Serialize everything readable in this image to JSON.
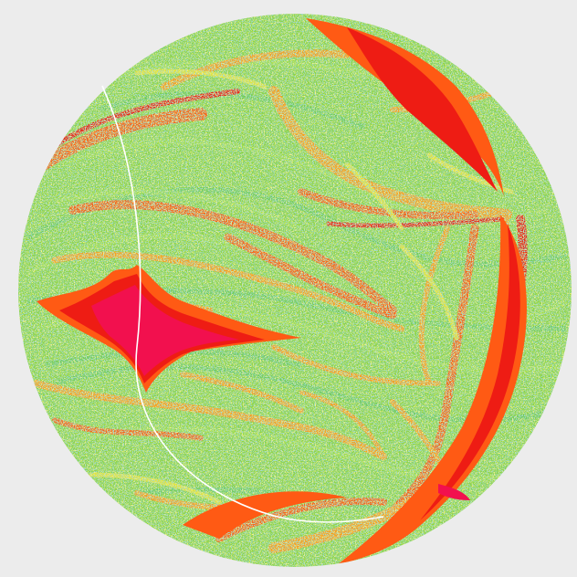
{
  "colors": {
    "background": "#ececec",
    "disk_base": "#8ed44a",
    "green_light": "#a6e04c",
    "green_dark": "#5cc46a",
    "teal": "#3aa8a0",
    "yellow": "#e8e43a",
    "orange": "#ff9a1c",
    "orange_red": "#ff5a14",
    "red": "#ee1c14",
    "crimson": "#f2104e",
    "boundary_arc": "#ffffff"
  }
}
